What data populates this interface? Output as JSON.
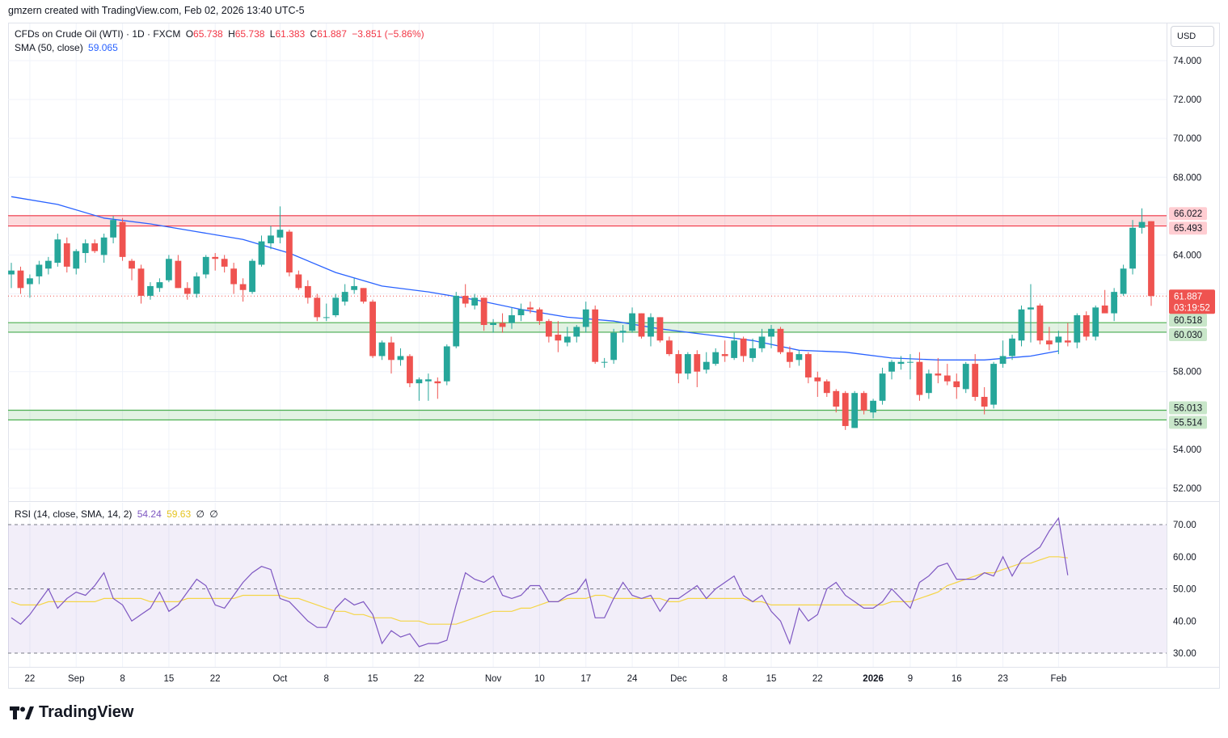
{
  "header": {
    "credit": "gmzern created with TradingView.com, Feb 02, 2026 13:40 UTC-5"
  },
  "legend": {
    "symbol": "CFDs on Crude Oil (WTI) · 1D · FXCM",
    "open_label": "O",
    "open": "65.738",
    "high_label": "H",
    "high": "65.738",
    "low_label": "L",
    "low": "61.383",
    "close_label": "C",
    "close": "61.887",
    "change": "−3.851 (−5.86%)",
    "sma_label": "SMA (50, close)",
    "sma_value": "59.065",
    "rsi_label": "RSI (14, close, SMA, 14, 2)",
    "rsi_value": "54.24",
    "rsi_ma_value": "59.63",
    "rsi_extra1": "∅",
    "rsi_extra2": "∅"
  },
  "currency": "USD",
  "brand": {
    "name": "TradingView",
    "icon": "tradingview-logo-icon"
  },
  "colors": {
    "up": "#26a69a",
    "down": "#ef5350",
    "sma": "#2962ff",
    "rsi": "#7e57c2",
    "rsi_ma": "#f5d547",
    "resistance_zone": "#f23645",
    "support_zone": "#4caf50"
  },
  "chart_data": {
    "type": "candlestick",
    "y_axis": {
      "ticks": [
        "74.000",
        "72.000",
        "70.000",
        "68.000",
        "66.000",
        "64.000",
        "62.000",
        "60.000",
        "58.000",
        "56.000",
        "54.000",
        "52.000"
      ],
      "range": [
        51.4,
        75.5
      ]
    },
    "x_axis": {
      "ticks": [
        {
          "label": "22",
          "index": 2
        },
        {
          "label": "Sep",
          "index": 7
        },
        {
          "label": "8",
          "index": 12
        },
        {
          "label": "15",
          "index": 17
        },
        {
          "label": "22",
          "index": 22
        },
        {
          "label": "Oct",
          "index": 29
        },
        {
          "label": "8",
          "index": 34
        },
        {
          "label": "15",
          "index": 39
        },
        {
          "label": "22",
          "index": 44
        },
        {
          "label": "Nov",
          "index": 52
        },
        {
          "label": "10",
          "index": 57
        },
        {
          "label": "17",
          "index": 62
        },
        {
          "label": "24",
          "index": 67
        },
        {
          "label": "Dec",
          "index": 72
        },
        {
          "label": "8",
          "index": 77
        },
        {
          "label": "15",
          "index": 82
        },
        {
          "label": "22",
          "index": 87
        },
        {
          "label": "2026",
          "index": 93
        },
        {
          "label": "9",
          "index": 97
        },
        {
          "label": "16",
          "index": 102
        },
        {
          "label": "23",
          "index": 107
        },
        {
          "label": "Feb",
          "index": 113
        }
      ]
    },
    "zones": [
      {
        "type": "resistance",
        "top": 66.022,
        "bottom": 65.493,
        "labels": [
          "66.022",
          "65.493"
        ]
      },
      {
        "type": "support",
        "top": 60.518,
        "bottom": 60.03,
        "labels": [
          "60.518",
          "60.030"
        ]
      },
      {
        "type": "support",
        "top": 56.013,
        "bottom": 55.514,
        "labels": [
          "56.013",
          "55.514"
        ]
      }
    ],
    "last_price": {
      "value": 61.887,
      "label": "61.887",
      "countdown": "03:19:52"
    },
    "candles": [
      {
        "o": 63.0,
        "h": 63.6,
        "l": 62.3,
        "c": 63.2
      },
      {
        "o": 63.2,
        "h": 63.4,
        "l": 62.0,
        "c": 62.3
      },
      {
        "o": 62.5,
        "h": 63.0,
        "l": 61.8,
        "c": 62.8
      },
      {
        "o": 62.9,
        "h": 63.7,
        "l": 62.5,
        "c": 63.5
      },
      {
        "o": 63.3,
        "h": 63.9,
        "l": 63.0,
        "c": 63.7
      },
      {
        "o": 63.6,
        "h": 65.1,
        "l": 63.4,
        "c": 64.8
      },
      {
        "o": 64.6,
        "h": 64.9,
        "l": 63.1,
        "c": 63.4
      },
      {
        "o": 63.3,
        "h": 64.3,
        "l": 63.0,
        "c": 64.2
      },
      {
        "o": 64.1,
        "h": 64.8,
        "l": 63.6,
        "c": 64.6
      },
      {
        "o": 64.6,
        "h": 64.8,
        "l": 64.1,
        "c": 64.2
      },
      {
        "o": 64.0,
        "h": 65.1,
        "l": 63.6,
        "c": 64.9
      },
      {
        "o": 64.9,
        "h": 66.0,
        "l": 64.6,
        "c": 65.8
      },
      {
        "o": 65.7,
        "h": 65.9,
        "l": 63.7,
        "c": 63.9
      },
      {
        "o": 63.7,
        "h": 63.8,
        "l": 62.7,
        "c": 63.3
      },
      {
        "o": 63.3,
        "h": 63.5,
        "l": 61.5,
        "c": 61.9
      },
      {
        "o": 61.9,
        "h": 62.6,
        "l": 61.7,
        "c": 62.4
      },
      {
        "o": 62.3,
        "h": 62.8,
        "l": 62.1,
        "c": 62.6
      },
      {
        "o": 62.7,
        "h": 64.0,
        "l": 62.6,
        "c": 63.8
      },
      {
        "o": 63.7,
        "h": 64.0,
        "l": 62.3,
        "c": 62.3
      },
      {
        "o": 62.3,
        "h": 62.6,
        "l": 61.7,
        "c": 62.0
      },
      {
        "o": 62.0,
        "h": 63.1,
        "l": 61.8,
        "c": 62.9
      },
      {
        "o": 63.0,
        "h": 64.0,
        "l": 62.8,
        "c": 63.9
      },
      {
        "o": 63.9,
        "h": 64.1,
        "l": 63.2,
        "c": 63.8
      },
      {
        "o": 63.8,
        "h": 64.0,
        "l": 63.1,
        "c": 63.4
      },
      {
        "o": 63.3,
        "h": 63.6,
        "l": 62.0,
        "c": 62.5
      },
      {
        "o": 62.5,
        "h": 62.8,
        "l": 61.6,
        "c": 62.2
      },
      {
        "o": 62.1,
        "h": 63.8,
        "l": 62.0,
        "c": 63.7
      },
      {
        "o": 63.5,
        "h": 65.0,
        "l": 63.4,
        "c": 64.7
      },
      {
        "o": 64.6,
        "h": 65.5,
        "l": 64.3,
        "c": 65.0
      },
      {
        "o": 64.9,
        "h": 66.5,
        "l": 64.6,
        "c": 65.3
      },
      {
        "o": 65.2,
        "h": 65.3,
        "l": 62.9,
        "c": 63.1
      },
      {
        "o": 63.0,
        "h": 63.2,
        "l": 62.2,
        "c": 62.3
      },
      {
        "o": 62.4,
        "h": 62.7,
        "l": 61.5,
        "c": 61.8
      },
      {
        "o": 61.8,
        "h": 62.0,
        "l": 60.6,
        "c": 60.8
      },
      {
        "o": 60.8,
        "h": 61.5,
        "l": 60.6,
        "c": 60.8
      },
      {
        "o": 60.9,
        "h": 62.0,
        "l": 60.8,
        "c": 61.8
      },
      {
        "o": 61.6,
        "h": 62.5,
        "l": 61.4,
        "c": 62.1
      },
      {
        "o": 62.2,
        "h": 62.8,
        "l": 62.0,
        "c": 62.4
      },
      {
        "o": 62.3,
        "h": 62.3,
        "l": 61.5,
        "c": 61.6
      },
      {
        "o": 61.6,
        "h": 61.7,
        "l": 58.7,
        "c": 58.8
      },
      {
        "o": 58.8,
        "h": 59.6,
        "l": 58.6,
        "c": 59.5
      },
      {
        "o": 59.5,
        "h": 59.8,
        "l": 57.9,
        "c": 58.6
      },
      {
        "o": 58.6,
        "h": 59.2,
        "l": 58.3,
        "c": 58.8
      },
      {
        "o": 58.8,
        "h": 58.9,
        "l": 57.2,
        "c": 57.4
      },
      {
        "o": 57.4,
        "h": 57.7,
        "l": 56.5,
        "c": 57.6
      },
      {
        "o": 57.5,
        "h": 57.9,
        "l": 56.5,
        "c": 57.6
      },
      {
        "o": 57.5,
        "h": 57.7,
        "l": 56.6,
        "c": 57.4
      },
      {
        "o": 57.5,
        "h": 59.4,
        "l": 57.3,
        "c": 59.3
      },
      {
        "o": 59.3,
        "h": 62.1,
        "l": 59.2,
        "c": 61.9
      },
      {
        "o": 61.9,
        "h": 62.5,
        "l": 61.3,
        "c": 61.5
      },
      {
        "o": 61.4,
        "h": 62.0,
        "l": 61.2,
        "c": 61.8
      },
      {
        "o": 61.8,
        "h": 61.8,
        "l": 60.1,
        "c": 60.4
      },
      {
        "o": 60.4,
        "h": 60.7,
        "l": 60.0,
        "c": 60.5
      },
      {
        "o": 60.5,
        "h": 61.0,
        "l": 60.0,
        "c": 60.3
      },
      {
        "o": 60.5,
        "h": 61.3,
        "l": 60.2,
        "c": 60.9
      },
      {
        "o": 60.9,
        "h": 61.5,
        "l": 60.6,
        "c": 61.2
      },
      {
        "o": 61.3,
        "h": 61.6,
        "l": 61.0,
        "c": 61.2
      },
      {
        "o": 61.2,
        "h": 61.3,
        "l": 60.4,
        "c": 60.6
      },
      {
        "o": 60.6,
        "h": 60.7,
        "l": 59.5,
        "c": 59.8
      },
      {
        "o": 59.9,
        "h": 60.6,
        "l": 59.0,
        "c": 59.6
      },
      {
        "o": 59.5,
        "h": 60.3,
        "l": 59.3,
        "c": 59.8
      },
      {
        "o": 59.8,
        "h": 60.4,
        "l": 59.5,
        "c": 60.3
      },
      {
        "o": 60.3,
        "h": 61.6,
        "l": 60.0,
        "c": 61.2
      },
      {
        "o": 61.2,
        "h": 61.4,
        "l": 58.4,
        "c": 58.5
      },
      {
        "o": 58.5,
        "h": 58.7,
        "l": 58.2,
        "c": 58.5
      },
      {
        "o": 58.6,
        "h": 60.2,
        "l": 58.4,
        "c": 60.0
      },
      {
        "o": 60.0,
        "h": 60.4,
        "l": 59.5,
        "c": 60.1
      },
      {
        "o": 60.1,
        "h": 61.3,
        "l": 60.0,
        "c": 61.0
      },
      {
        "o": 61.0,
        "h": 61.0,
        "l": 59.7,
        "c": 59.8
      },
      {
        "o": 59.8,
        "h": 61.0,
        "l": 59.3,
        "c": 60.8
      },
      {
        "o": 60.8,
        "h": 60.8,
        "l": 59.5,
        "c": 59.6
      },
      {
        "o": 59.6,
        "h": 59.8,
        "l": 58.8,
        "c": 58.9
      },
      {
        "o": 58.9,
        "h": 59.1,
        "l": 57.4,
        "c": 57.9
      },
      {
        "o": 57.9,
        "h": 59.0,
        "l": 57.6,
        "c": 58.9
      },
      {
        "o": 58.9,
        "h": 59.1,
        "l": 57.2,
        "c": 58.0
      },
      {
        "o": 58.1,
        "h": 59.0,
        "l": 57.9,
        "c": 58.5
      },
      {
        "o": 58.4,
        "h": 59.2,
        "l": 58.3,
        "c": 59.0
      },
      {
        "o": 58.9,
        "h": 59.6,
        "l": 58.5,
        "c": 58.8
      },
      {
        "o": 58.7,
        "h": 60.0,
        "l": 58.6,
        "c": 59.6
      },
      {
        "o": 59.7,
        "h": 59.8,
        "l": 58.5,
        "c": 58.8
      },
      {
        "o": 58.7,
        "h": 59.7,
        "l": 58.5,
        "c": 59.2
      },
      {
        "o": 59.2,
        "h": 60.2,
        "l": 59.0,
        "c": 59.8
      },
      {
        "o": 59.8,
        "h": 60.4,
        "l": 59.2,
        "c": 60.2
      },
      {
        "o": 60.2,
        "h": 60.3,
        "l": 58.9,
        "c": 59.0
      },
      {
        "o": 59.0,
        "h": 59.3,
        "l": 58.2,
        "c": 58.5
      },
      {
        "o": 58.6,
        "h": 59.1,
        "l": 58.3,
        "c": 58.9
      },
      {
        "o": 58.9,
        "h": 59.0,
        "l": 57.4,
        "c": 57.7
      },
      {
        "o": 57.7,
        "h": 58.0,
        "l": 56.7,
        "c": 57.5
      },
      {
        "o": 57.5,
        "h": 57.6,
        "l": 56.7,
        "c": 56.9
      },
      {
        "o": 57.0,
        "h": 57.1,
        "l": 55.9,
        "c": 56.2
      },
      {
        "o": 56.9,
        "h": 57.0,
        "l": 55.0,
        "c": 55.2
      },
      {
        "o": 55.1,
        "h": 57.0,
        "l": 55.1,
        "c": 56.9
      },
      {
        "o": 56.9,
        "h": 57.0,
        "l": 55.8,
        "c": 56.0
      },
      {
        "o": 55.9,
        "h": 56.6,
        "l": 55.6,
        "c": 56.5
      },
      {
        "o": 56.5,
        "h": 58.2,
        "l": 56.3,
        "c": 57.9
      },
      {
        "o": 58.0,
        "h": 58.6,
        "l": 57.6,
        "c": 58.5
      },
      {
        "o": 58.4,
        "h": 58.8,
        "l": 58.1,
        "c": 58.5
      },
      {
        "o": 58.5,
        "h": 58.9,
        "l": 57.6,
        "c": 58.5
      },
      {
        "o": 58.5,
        "h": 59.0,
        "l": 56.5,
        "c": 56.8
      },
      {
        "o": 56.9,
        "h": 58.1,
        "l": 56.6,
        "c": 57.9
      },
      {
        "o": 57.9,
        "h": 58.7,
        "l": 57.4,
        "c": 57.8
      },
      {
        "o": 57.8,
        "h": 58.4,
        "l": 57.3,
        "c": 57.5
      },
      {
        "o": 57.5,
        "h": 57.9,
        "l": 56.6,
        "c": 57.2
      },
      {
        "o": 57.1,
        "h": 58.5,
        "l": 56.9,
        "c": 58.4
      },
      {
        "o": 58.4,
        "h": 58.9,
        "l": 56.5,
        "c": 56.7
      },
      {
        "o": 56.7,
        "h": 57.2,
        "l": 55.8,
        "c": 56.2
      },
      {
        "o": 56.3,
        "h": 58.5,
        "l": 56.1,
        "c": 58.4
      },
      {
        "o": 58.4,
        "h": 59.6,
        "l": 58.2,
        "c": 58.8
      },
      {
        "o": 58.8,
        "h": 59.9,
        "l": 58.6,
        "c": 59.7
      },
      {
        "o": 59.6,
        "h": 61.4,
        "l": 59.3,
        "c": 61.2
      },
      {
        "o": 61.2,
        "h": 62.5,
        "l": 59.5,
        "c": 61.3
      },
      {
        "o": 61.4,
        "h": 61.5,
        "l": 59.4,
        "c": 59.6
      },
      {
        "o": 59.6,
        "h": 60.3,
        "l": 59.1,
        "c": 59.4
      },
      {
        "o": 59.5,
        "h": 60.1,
        "l": 58.9,
        "c": 59.8
      },
      {
        "o": 59.6,
        "h": 60.5,
        "l": 59.3,
        "c": 59.5
      },
      {
        "o": 59.5,
        "h": 61.0,
        "l": 59.2,
        "c": 60.9
      },
      {
        "o": 60.9,
        "h": 61.1,
        "l": 59.6,
        "c": 59.8
      },
      {
        "o": 59.8,
        "h": 61.4,
        "l": 59.6,
        "c": 61.3
      },
      {
        "o": 61.4,
        "h": 62.2,
        "l": 61.1,
        "c": 61.0
      },
      {
        "o": 61.0,
        "h": 62.3,
        "l": 60.6,
        "c": 62.1
      },
      {
        "o": 62.0,
        "h": 63.5,
        "l": 61.9,
        "c": 63.3
      },
      {
        "o": 63.3,
        "h": 65.8,
        "l": 63.0,
        "c": 65.4
      },
      {
        "o": 65.4,
        "h": 66.4,
        "l": 65.1,
        "c": 65.7
      },
      {
        "o": 65.738,
        "h": 65.738,
        "l": 61.383,
        "c": 61.887
      }
    ],
    "sma50": {
      "name": "SMA (50, close)",
      "points": [
        [
          0,
          67.0
        ],
        [
          5,
          66.6
        ],
        [
          10,
          65.9
        ],
        [
          15,
          65.6
        ],
        [
          20,
          65.2
        ],
        [
          25,
          64.8
        ],
        [
          30,
          64.1
        ],
        [
          35,
          63.1
        ],
        [
          40,
          62.4
        ],
        [
          45,
          62.1
        ],
        [
          50,
          61.7
        ],
        [
          55,
          61.2
        ],
        [
          60,
          60.8
        ],
        [
          65,
          60.6
        ],
        [
          70,
          60.2
        ],
        [
          75,
          59.9
        ],
        [
          80,
          59.6
        ],
        [
          85,
          59.1
        ],
        [
          90,
          59.0
        ],
        [
          95,
          58.7
        ],
        [
          100,
          58.6
        ],
        [
          105,
          58.6
        ],
        [
          110,
          58.8
        ],
        [
          113,
          59.065
        ]
      ]
    },
    "rsi": {
      "label": "RSI (14, close, SMA, 14, 2)",
      "ticks": [
        "70.00",
        "60.00",
        "50.00",
        "40.00",
        "30.00"
      ],
      "range": [
        26,
        73
      ],
      "upper_band": 70,
      "middle": 50,
      "lower_band": 30,
      "values": [
        41,
        39,
        42,
        46,
        50,
        44,
        47,
        49,
        48,
        51,
        55,
        47,
        45,
        40,
        42,
        44,
        49,
        43,
        45,
        49,
        53,
        51,
        45,
        44,
        48,
        52,
        55,
        57,
        56,
        47,
        46,
        43,
        40,
        38,
        38,
        44,
        47,
        45,
        46,
        42,
        33,
        37,
        35,
        36,
        32,
        33,
        33,
        34,
        45,
        55,
        53,
        52,
        54,
        48,
        47,
        48,
        51,
        51,
        46,
        46,
        48,
        49,
        53,
        41,
        41,
        47,
        52,
        48,
        47,
        48,
        43,
        47,
        47,
        49,
        51,
        47,
        50,
        52,
        54,
        48,
        46,
        48,
        43,
        40,
        33,
        44,
        40,
        42,
        50,
        52,
        48,
        46,
        44,
        44,
        46,
        50,
        47,
        44,
        52,
        54,
        57,
        58,
        53,
        53,
        53,
        55,
        54,
        60,
        54,
        59,
        61,
        63,
        68,
        72,
        54.24
      ],
      "ma": [
        46,
        45,
        45,
        45,
        46,
        46,
        46,
        46,
        46,
        46,
        47,
        47,
        47,
        47,
        47,
        46,
        46,
        46,
        46,
        47,
        47,
        47,
        47,
        47,
        47,
        48,
        48,
        48,
        48,
        48,
        47,
        47,
        46,
        45,
        44,
        43,
        43,
        42,
        42,
        41,
        41,
        41,
        40,
        40,
        40,
        39,
        39,
        39,
        39,
        40,
        41,
        42,
        43,
        43,
        43,
        44,
        44,
        45,
        46,
        46,
        47,
        47,
        47,
        48,
        48,
        47,
        47,
        47,
        47,
        47,
        47,
        46,
        46,
        47,
        47,
        47,
        47,
        47,
        47,
        47,
        46,
        46,
        45,
        45,
        45,
        45,
        45,
        45,
        45,
        45,
        45,
        45,
        45,
        45,
        45,
        46,
        46,
        46,
        47,
        48,
        49,
        51,
        52,
        53,
        54,
        55,
        55,
        56,
        57,
        58,
        58,
        59,
        60,
        60,
        59.63
      ]
    }
  }
}
